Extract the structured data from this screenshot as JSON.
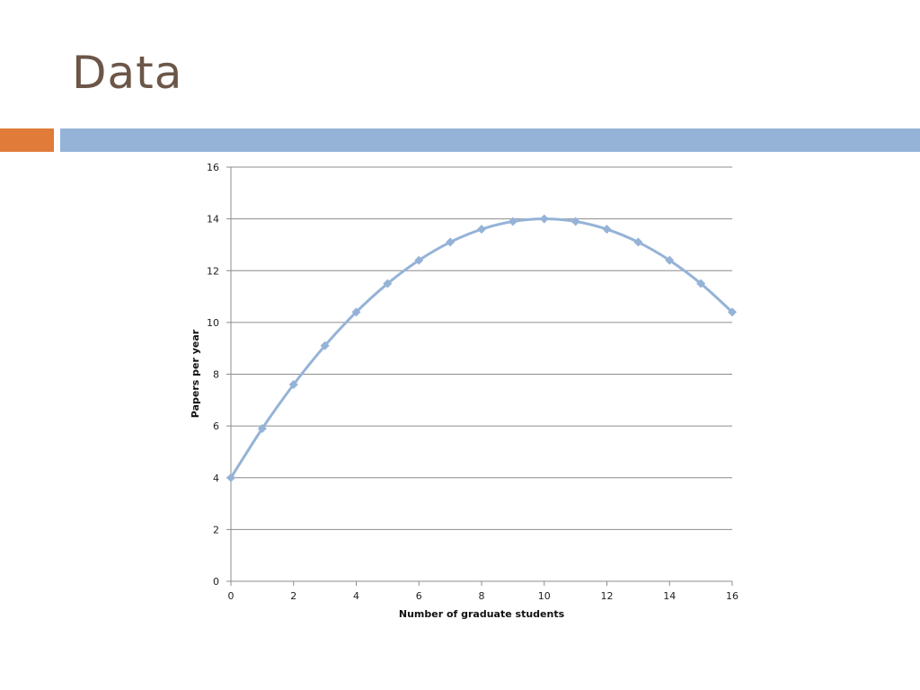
{
  "slide": {
    "title": "Data",
    "colors": {
      "title": "#6b5648",
      "accent_orange": "#e07b39",
      "accent_blue": "#95b3d7",
      "series": "#95b3d7",
      "grid": "#8c8c8c"
    }
  },
  "chart_data": {
    "type": "line",
    "xlabel": "Number of graduate students",
    "ylabel": "Papers per year",
    "xlim": [
      0,
      16
    ],
    "ylim": [
      0,
      16
    ],
    "xticks": [
      0,
      2,
      4,
      6,
      8,
      10,
      12,
      14,
      16
    ],
    "yticks": [
      0,
      2,
      4,
      6,
      8,
      10,
      12,
      14,
      16
    ],
    "grid": "horizontal",
    "marker": "diamond",
    "series": [
      {
        "x": [
          0,
          1,
          2,
          3,
          4,
          5,
          6,
          7,
          8,
          9,
          10,
          11,
          12,
          13,
          14,
          15,
          16
        ],
        "values": [
          4.0,
          5.9,
          7.6,
          9.1,
          10.4,
          11.5,
          12.4,
          13.1,
          13.6,
          13.9,
          14.0,
          13.9,
          13.6,
          13.1,
          12.4,
          11.5,
          10.4
        ]
      }
    ]
  }
}
